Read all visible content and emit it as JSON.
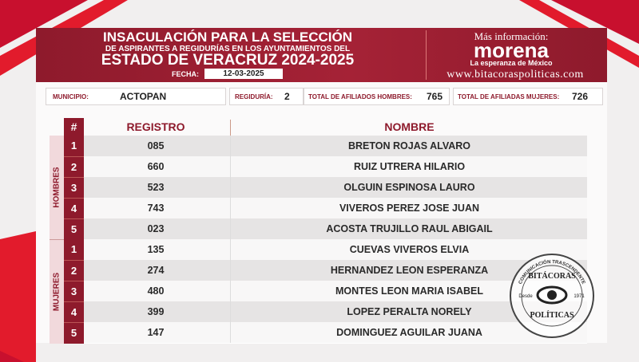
{
  "header": {
    "title_line1": "INSACULACIÓN PARA LA SELECCIÓN",
    "title_line2": "DE ASPIRANTES A REGIDURÍAS EN LOS AYUNTAMIENTOS DEL",
    "title_line3": "ESTADO DE VERACRUZ 2024-2025",
    "date_label": "FECHA:",
    "date": "12-03-2025",
    "more_info": "Más información:",
    "party": "morena",
    "tagline": "La esperanza de México",
    "website": "www.bitacoraspoliticas.com"
  },
  "info": {
    "municipio_label": "MUNICIPIO:",
    "municipio": "ACTOPAN",
    "regiduria_label": "REGIDURÍA:",
    "regiduria": "2",
    "hombres_label": "TOTAL DE AFILIADOS HOMBRES:",
    "hombres": "765",
    "mujeres_label": "TOTAL DE AFILIADAS MUJERES:",
    "mujeres": "726"
  },
  "table": {
    "headers": [
      "#",
      "REGISTRO",
      "NOMBRE"
    ],
    "groups": [
      {
        "label": "HOMBRES",
        "rows": [
          [
            "1",
            "085",
            "BRETON ROJAS ALVARO"
          ],
          [
            "2",
            "660",
            "RUIZ UTRERA HILARIO"
          ],
          [
            "3",
            "523",
            "OLGUIN ESPINOSA LAURO"
          ],
          [
            "4",
            "743",
            "VIVEROS PEREZ JOSE JUAN"
          ],
          [
            "5",
            "023",
            "ACOSTA TRUJILLO RAUL ABIGAIL"
          ]
        ]
      },
      {
        "label": "MUJERES",
        "rows": [
          [
            "1",
            "135",
            "CUEVAS VIVEROS ELVIA"
          ],
          [
            "2",
            "274",
            "HERNANDEZ LEON ESPERANZA"
          ],
          [
            "3",
            "480",
            "MONTES LEON MARIA ISABEL"
          ],
          [
            "4",
            "399",
            "LOPEZ PERALTA NORELY"
          ],
          [
            "5",
            "147",
            "DOMINGUEZ AGUILAR JUANA"
          ]
        ]
      }
    ]
  },
  "watermark": {
    "top": "COMUNICACIÓN TRASCENDENTE",
    "name1": "BITÁCORAS",
    "name2": "POLÍTICAS",
    "since": "Desde",
    "year": "1971"
  }
}
